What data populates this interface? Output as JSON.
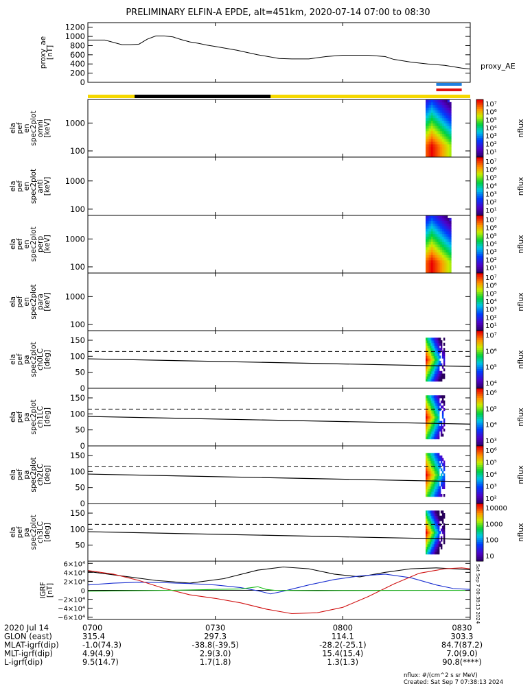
{
  "title": "PRELIMINARY ELFIN-A EPDE, alt=451km, 2020-07-14 07:00 to 08:30",
  "colors": {
    "proxy_line": "#000000",
    "bar_yellow": "#f5d800",
    "bar_black": "#000000",
    "bar_blue": "#1e7fe0",
    "bar_red": "#e01010",
    "igrf_x": "#000000",
    "igrf_y": "#1a2fd0",
    "igrf_z": "#d01010",
    "igrf_w": "#20c020"
  },
  "chart_data": [
    {
      "type": "line",
      "name": "proxy_ae",
      "ylabel_lines": [
        "proxy_ae",
        "[nT]"
      ],
      "legend": "proxy_AE",
      "ylim": [
        0,
        1300
      ],
      "yticks": [
        "1200",
        "1000",
        "800",
        "600",
        "400",
        "200",
        "0"
      ],
      "ytick_values": [
        1200,
        1000,
        800,
        600,
        400,
        200,
        0
      ],
      "x_minutes": [
        0,
        4,
        8,
        10,
        12,
        14,
        16,
        18,
        20,
        22,
        24,
        26,
        28,
        30,
        35,
        40,
        45,
        48,
        52,
        56,
        60,
        66,
        70,
        72,
        76,
        80,
        84,
        88,
        90
      ],
      "values": [
        920,
        920,
        820,
        820,
        830,
        940,
        1010,
        1010,
        990,
        930,
        880,
        850,
        810,
        780,
        700,
        600,
        520,
        510,
        510,
        560,
        590,
        590,
        560,
        500,
        440,
        400,
        370,
        310,
        290
      ]
    },
    {
      "type": "heatmap",
      "name": "ela_pef_en_spec2plot_omni",
      "ylabel_lines": [
        "ela",
        "pef",
        "en",
        "spec2plot",
        "omni",
        "[keV]"
      ],
      "ylog": true,
      "ylim": [
        60,
        7000
      ],
      "yticks": [
        "1000",
        "100"
      ],
      "ytick_values": [
        1000,
        100
      ],
      "zlabel": "nflux",
      "zticks": [
        "10⁷",
        "10⁶",
        "10⁵",
        "10⁴",
        "10³",
        "10²",
        "10¹"
      ],
      "zlim": [
        1,
        7
      ],
      "active_minutes": [
        79.5,
        85.5
      ],
      "peak_log_flux": 7,
      "rolloff_keV": 150
    },
    {
      "type": "heatmap",
      "name": "ela_pef_en_spec2plot_anti",
      "ylabel_lines": [
        "ela",
        "pef",
        "en",
        "spec2plot",
        "anti",
        "[keV]"
      ],
      "ylog": true,
      "ylim": [
        60,
        7000
      ],
      "yticks": [
        "1000",
        "100"
      ],
      "ytick_values": [
        1000,
        100
      ],
      "zlabel": "nflux",
      "zticks": [
        "10⁷",
        "10⁶",
        "10⁵",
        "10⁴",
        "10³",
        "10²",
        "10¹"
      ],
      "zlim": [
        1,
        7
      ],
      "active_minutes": []
    },
    {
      "type": "heatmap",
      "name": "ela_pef_en_spec2plot_perp",
      "ylabel_lines": [
        "ela",
        "pef",
        "en",
        "spec2plot",
        "perp",
        "[keV]"
      ],
      "ylog": true,
      "ylim": [
        60,
        7000
      ],
      "yticks": [
        "1000",
        "100"
      ],
      "ytick_values": [
        1000,
        100
      ],
      "zlabel": "nflux",
      "zticks": [
        "10⁷",
        "10⁶",
        "10⁵",
        "10⁴",
        "10³",
        "10²",
        "10¹"
      ],
      "zlim": [
        1,
        7
      ],
      "active_minutes": [
        79.5,
        85.5
      ],
      "peak_log_flux": 7,
      "rolloff_keV": 150
    },
    {
      "type": "heatmap",
      "name": "ela_pef_en_spec2plot_para",
      "ylabel_lines": [
        "ela",
        "pef",
        "en",
        "spec2plot",
        "para",
        "[keV]"
      ],
      "ylog": true,
      "ylim": [
        60,
        7000
      ],
      "yticks": [
        "1000",
        "100"
      ],
      "ytick_values": [
        1000,
        100
      ],
      "zlabel": "nflux",
      "zticks": [
        "10⁷",
        "10⁶",
        "10⁵",
        "10⁴",
        "10³",
        "10²",
        "10¹"
      ],
      "zlim": [
        1,
        7
      ],
      "active_minutes": []
    },
    {
      "type": "heatmap",
      "name": "ela_pef_pa_spec2plot_ch0LC",
      "ylabel_lines": [
        "ela",
        "pef",
        "pa",
        "spec2plot",
        "ch0LC",
        "[deg]"
      ],
      "ylim": [
        0,
        180
      ],
      "yticks": [
        "150",
        "100",
        "50",
        "0"
      ],
      "ytick_values": [
        150,
        100,
        50,
        0
      ],
      "zlabel": "nflux",
      "zticks": [
        "10⁷",
        "10⁶",
        "10⁵",
        "10⁴"
      ],
      "zlim": [
        3.5,
        7.2
      ],
      "active_minutes": [
        79.5,
        84
      ],
      "pa_range": [
        22,
        158
      ],
      "lc_line": {
        "x_minutes": [
          0,
          90
        ],
        "deg": [
          92,
          68
        ]
      },
      "dashed_deg": 115
    },
    {
      "type": "heatmap",
      "name": "ela_pef_pa_spec2plot_ch1LC",
      "ylabel_lines": [
        "ela",
        "pef",
        "pa",
        "spec2plot",
        "ch1LC",
        "[deg]"
      ],
      "ylim": [
        0,
        180
      ],
      "yticks": [
        "150",
        "100",
        "50",
        "0"
      ],
      "ytick_values": [
        150,
        100,
        50,
        0
      ],
      "zlabel": "nflux",
      "zticks": [
        "10⁶",
        "10⁵",
        "10⁴",
        "10³"
      ],
      "zlim": [
        2.5,
        6.5
      ],
      "active_minutes": [
        79.5,
        84
      ],
      "pa_range": [
        22,
        158
      ],
      "lc_line": {
        "x_minutes": [
          0,
          90
        ],
        "deg": [
          92,
          68
        ]
      },
      "dashed_deg": 115
    },
    {
      "type": "heatmap",
      "name": "ela_pef_pa_spec2plot_ch2LC",
      "ylabel_lines": [
        "ela",
        "pef",
        "pa",
        "spec2plot",
        "ch2LC",
        "[deg]"
      ],
      "ylim": [
        0,
        180
      ],
      "yticks": [
        "150",
        "100",
        "50",
        "0"
      ],
      "ytick_values": [
        150,
        100,
        50,
        0
      ],
      "zlabel": "nflux",
      "zticks": [
        "10⁶",
        "10⁵",
        "10⁴",
        "10³",
        "10²"
      ],
      "zlim": [
        1.8,
        6.3
      ],
      "active_minutes": [
        79.5,
        84
      ],
      "pa_range": [
        22,
        158
      ],
      "lc_line": {
        "x_minutes": [
          0,
          90
        ],
        "deg": [
          92,
          68
        ]
      },
      "dashed_deg": 115
    },
    {
      "type": "heatmap",
      "name": "ela_pef_pa_spec2plot_ch3LC",
      "ylabel_lines": [
        "ela",
        "pef",
        "pa",
        "spec2plot",
        "ch3LC",
        "[deg]"
      ],
      "ylim": [
        0,
        180
      ],
      "yticks": [
        "150",
        "100",
        "50"
      ],
      "ytick_values": [
        150,
        100,
        50
      ],
      "zlabel": "nflux",
      "zticks": [
        "10000",
        "1000",
        "100",
        "10"
      ],
      "zlim": [
        1,
        4.2
      ],
      "active_minutes": [
        79.5,
        84
      ],
      "pa_range": [
        22,
        158
      ],
      "lc_line": {
        "x_minutes": [
          0,
          90
        ],
        "deg": [
          92,
          68
        ]
      },
      "dashed_deg": 115
    },
    {
      "type": "line",
      "name": "IGRF",
      "ylabel_lines": [
        "IGRF",
        "[nT]"
      ],
      "ylim": [
        -65000,
        65000
      ],
      "yticks": [
        "6×10⁴",
        "4×10⁴",
        "2×10⁴",
        "0",
        "−2×10⁴",
        "−4×10⁴",
        "−6×10⁴"
      ],
      "ytick_values": [
        60000,
        40000,
        20000,
        0,
        -20000,
        -40000,
        -60000
      ],
      "side_note": "Sat Sep  7 00:38:13 2024",
      "series": [
        {
          "key": "igrf_x",
          "x_minutes": [
            0,
            8,
            16,
            24,
            32,
            40,
            46,
            52,
            58,
            64,
            70,
            76,
            82,
            86,
            90
          ],
          "values": [
            42000,
            32000,
            22000,
            16000,
            26000,
            45000,
            52000,
            48000,
            36000,
            30000,
            40000,
            48000,
            50000,
            48000,
            46000
          ]
        },
        {
          "key": "igrf_y",
          "x_minutes": [
            0,
            6,
            12,
            18,
            24,
            30,
            36,
            40,
            43,
            46,
            52,
            58,
            64,
            70,
            76,
            82,
            86,
            90
          ],
          "values": [
            12000,
            16000,
            18000,
            17000,
            15000,
            12000,
            6000,
            -1000,
            -8000,
            -2000,
            12000,
            24000,
            32000,
            36000,
            28000,
            12000,
            4000,
            2000
          ]
        },
        {
          "key": "igrf_z",
          "x_minutes": [
            0,
            6,
            12,
            18,
            24,
            30,
            36,
            42,
            48,
            54,
            60,
            66,
            72,
            78,
            84,
            88,
            90
          ],
          "values": [
            44000,
            36000,
            22000,
            4000,
            -10000,
            -18000,
            -28000,
            -42000,
            -52000,
            -50000,
            -38000,
            -14000,
            14000,
            38000,
            48000,
            50000,
            48000
          ]
        },
        {
          "key": "igrf_w",
          "x_minutes": [
            0,
            10,
            20,
            30,
            36,
            40,
            42,
            44,
            48,
            54,
            60,
            70,
            80,
            90
          ],
          "values": [
            -2000,
            -1000,
            0,
            2000,
            3000,
            8000,
            2000,
            0,
            -500,
            -800,
            -500,
            -300,
            -200,
            -100
          ]
        }
      ]
    }
  ],
  "xaxis": {
    "labels": [
      "0700",
      "0730",
      "0800",
      "0830"
    ],
    "label_minutes": [
      0,
      30,
      60,
      90
    ]
  },
  "ephemeris": {
    "rows": [
      {
        "label": "2020 Jul 14",
        "values": [
          "0700",
          "0730",
          "0800",
          "0830"
        ]
      },
      {
        "label": "GLON (east)",
        "values": [
          "315.4",
          "297.3",
          "114.1",
          "303.3"
        ]
      },
      {
        "label": "MLAT-igrf(dip)",
        "values": [
          "-1.0(74.3)",
          "-38.8(-39.5)",
          "-28.2(-25.1)",
          "84.7(87.2)"
        ]
      },
      {
        "label": "MLT-igrf(dip)",
        "values": [
          "4.9(4.9)",
          "2.9(3.0)",
          "15.4(15.4)",
          "7.0(9.0)"
        ]
      },
      {
        "label": "L-igrf(dip)",
        "values": [
          "9.5(14.7)",
          "1.7(1.8)",
          "1.3(1.3)",
          "90.8(****)"
        ]
      }
    ]
  },
  "footer": {
    "units": "nflux: #/(cm^2 s sr MeV)",
    "created": "Created: Sat Sep  7 07:38:13 2024"
  }
}
